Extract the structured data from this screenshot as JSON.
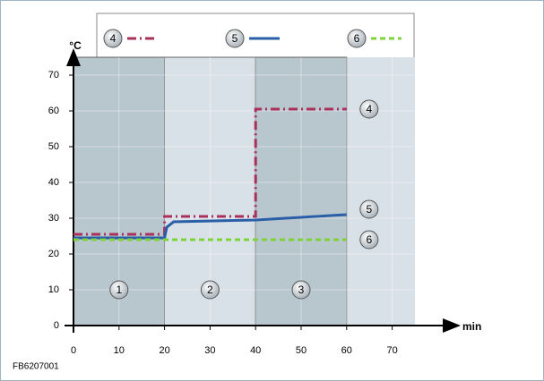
{
  "chart_data": {
    "type": "line",
    "y_label": "°C",
    "x_label": "min",
    "code": "FB6207001",
    "xlim": [
      0,
      75
    ],
    "ylim": [
      0,
      75
    ],
    "xticks": [
      0,
      10,
      20,
      30,
      40,
      50,
      60,
      70
    ],
    "yticks": [
      0,
      10,
      20,
      30,
      40,
      50,
      60,
      70
    ],
    "grid": true,
    "regions": [
      {
        "label": "1",
        "start": 0,
        "end": 20,
        "color": "#b8c6ce"
      },
      {
        "label": "2",
        "start": 20,
        "end": 40,
        "color": "#d8e1e7"
      },
      {
        "label": "3",
        "start": 40,
        "end": 60,
        "color": "#b8c6ce"
      }
    ],
    "series": [
      {
        "name": "4",
        "color": "#a8305a",
        "dash": "10 4 2 4",
        "x": [
          0,
          20,
          20,
          40,
          40,
          60
        ],
        "values": [
          25.5,
          25.5,
          30.5,
          30.5,
          60.5,
          60.5
        ]
      },
      {
        "name": "5",
        "color": "#2a5fa8",
        "dash": "none",
        "x": [
          0,
          20,
          20.5,
          22,
          40,
          60
        ],
        "values": [
          24.5,
          24.5,
          27.5,
          29,
          29.5,
          31
        ]
      },
      {
        "name": "6",
        "color": "#7fd33a",
        "dash": "6 4",
        "x": [
          0,
          60
        ],
        "values": [
          24,
          24
        ]
      }
    ]
  }
}
